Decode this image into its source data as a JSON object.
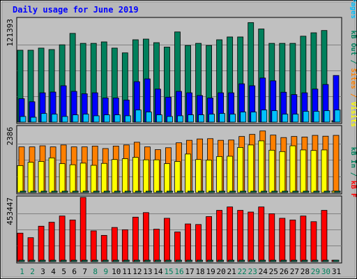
{
  "chart_data": {
    "type": "bar",
    "title": "Daily usage for June 2019",
    "days": [
      "1",
      "2",
      "3",
      "4",
      "5",
      "6",
      "7",
      "8",
      "9",
      "10",
      "11",
      "12",
      "13",
      "14",
      "15",
      "16",
      "17",
      "18",
      "19",
      "20",
      "21",
      "22",
      "23",
      "24",
      "25",
      "26",
      "27",
      "28",
      "29",
      "30",
      "31"
    ],
    "weekend_days": [
      1,
      2,
      8,
      9,
      15,
      16,
      22,
      23,
      29,
      30
    ],
    "panels": [
      {
        "id": "hits-files-pages",
        "max_label": "121393",
        "max": 121393,
        "labels": [
          {
            "text": "Pages",
            "color": "#00c0ff"
          },
          {
            "text": " / ",
            "color": "#0000ff"
          },
          {
            "text": "Files",
            "color": "#0000ff"
          },
          {
            "text": " / ",
            "color": "#0000ff"
          },
          {
            "text": "Hits",
            "color": "#00805c"
          }
        ],
        "series": [
          {
            "key": "hits",
            "color": "#00805c",
            "values": [
              84500,
              84500,
              87000,
              85300,
              90900,
              104300,
              92600,
              92600,
              94300,
              87000,
              81400,
              96800,
              97600,
              93400,
              88200,
              106000,
              90100,
              92600,
              90100,
              96800,
              100100,
              100100,
              117000,
              109500,
              92600,
              92600,
              92600,
              101000,
              105000,
              107700,
              0
            ]
          },
          {
            "key": "files",
            "color": "#0000ff",
            "values": [
              27500,
              23900,
              34400,
              35300,
              42700,
              36100,
              33300,
              34400,
              28300,
              28300,
              25900,
              47500,
              50800,
              38800,
              29300,
              36100,
              34400,
              31200,
              28300,
              34400,
              34400,
              45000,
              42700,
              51800,
              48500,
              35100,
              32300,
              34400,
              38800,
              44200,
              54800
            ]
          },
          {
            "key": "pages",
            "color": "#00c0ff",
            "values": [
              6600,
              5700,
              10100,
              9300,
              6600,
              8500,
              9300,
              7400,
              8500,
              8500,
              7400,
              14200,
              11800,
              8500,
              6600,
              7400,
              8500,
              8500,
              9300,
              10100,
              9300,
              11800,
              11800,
              14200,
              13400,
              9300,
              9300,
              12600,
              12600,
              13400,
              14200
            ]
          }
        ]
      },
      {
        "id": "visits-sites-kb-out",
        "max_label": "2386",
        "max": 2386,
        "labels": [
          {
            "text": "Visits",
            "color": "#ffff00"
          },
          {
            "text": " / ",
            "color": "#ff8000"
          },
          {
            "text": "Sites",
            "color": "#ff8000"
          },
          {
            "text": " / ",
            "color": "#00805c"
          },
          {
            "text": "kB Out",
            "color": "#00805c"
          }
        ],
        "series": [
          {
            "key": "sites",
            "color": "#ff8000",
            "values": [
              1660,
              1660,
              1700,
              1660,
              1730,
              1660,
              1660,
              1690,
              1600,
              1690,
              1730,
              1830,
              1660,
              1560,
              1630,
              1810,
              1900,
              1950,
              1960,
              1900,
              1910,
              2040,
              2116,
              2240,
              2090,
              2000,
              2040,
              2020,
              2080,
              2050,
              2080
            ]
          },
          {
            "key": "visits",
            "color": "#ffff00",
            "values": [
              980,
              1100,
              1130,
              1260,
              1050,
              1010,
              1070,
              990,
              1060,
              1200,
              1230,
              1280,
              1190,
              1190,
              1050,
              1130,
              1400,
              1200,
              1180,
              1310,
              1320,
              1640,
              1730,
              1880,
              1540,
              1490,
              1700,
              1550,
              1530,
              1550,
              0
            ]
          },
          {
            "key": "kb_out",
            "color": "#00805c",
            "values": [
              0,
              0,
              0,
              0,
              0,
              0,
              0,
              0,
              0,
              0,
              0,
              0,
              0,
              0,
              0,
              0,
              0,
              0,
              0,
              0,
              0,
              0,
              0,
              0,
              0,
              0,
              0,
              0,
              0,
              0,
              0
            ]
          }
        ]
      },
      {
        "id": "kb-in-files",
        "max_label": "453447",
        "max": 453447,
        "labels": [
          {
            "text": "kB F",
            "color": "#ff0000"
          },
          {
            "text": " / ",
            "color": "#00805c"
          },
          {
            "text": "kB In",
            "color": "#00805c"
          }
        ],
        "series": [
          {
            "key": "kb_f",
            "color": "#ff0000",
            "values": [
              201000,
              169000,
              250000,
              278000,
              322000,
              294000,
              453447,
              217000,
              185000,
              241000,
              225000,
              314000,
              346000,
              229000,
              306000,
              209000,
              266000,
              262000,
              318000,
              362000,
              386000,
              362000,
              350000,
              386000,
              338000,
              306000,
              294000,
              322000,
              282000,
              362000,
              0
            ]
          },
          {
            "key": "kb_in",
            "color": "#00805c",
            "values": [
              0,
              0,
              0,
              0,
              0,
              0,
              0,
              0,
              0,
              0,
              0,
              0,
              0,
              0,
              0,
              0,
              0,
              0,
              0,
              0,
              0,
              0,
              0,
              0,
              0,
              0,
              0,
              0,
              0,
              0,
              0
            ]
          }
        ]
      }
    ]
  }
}
